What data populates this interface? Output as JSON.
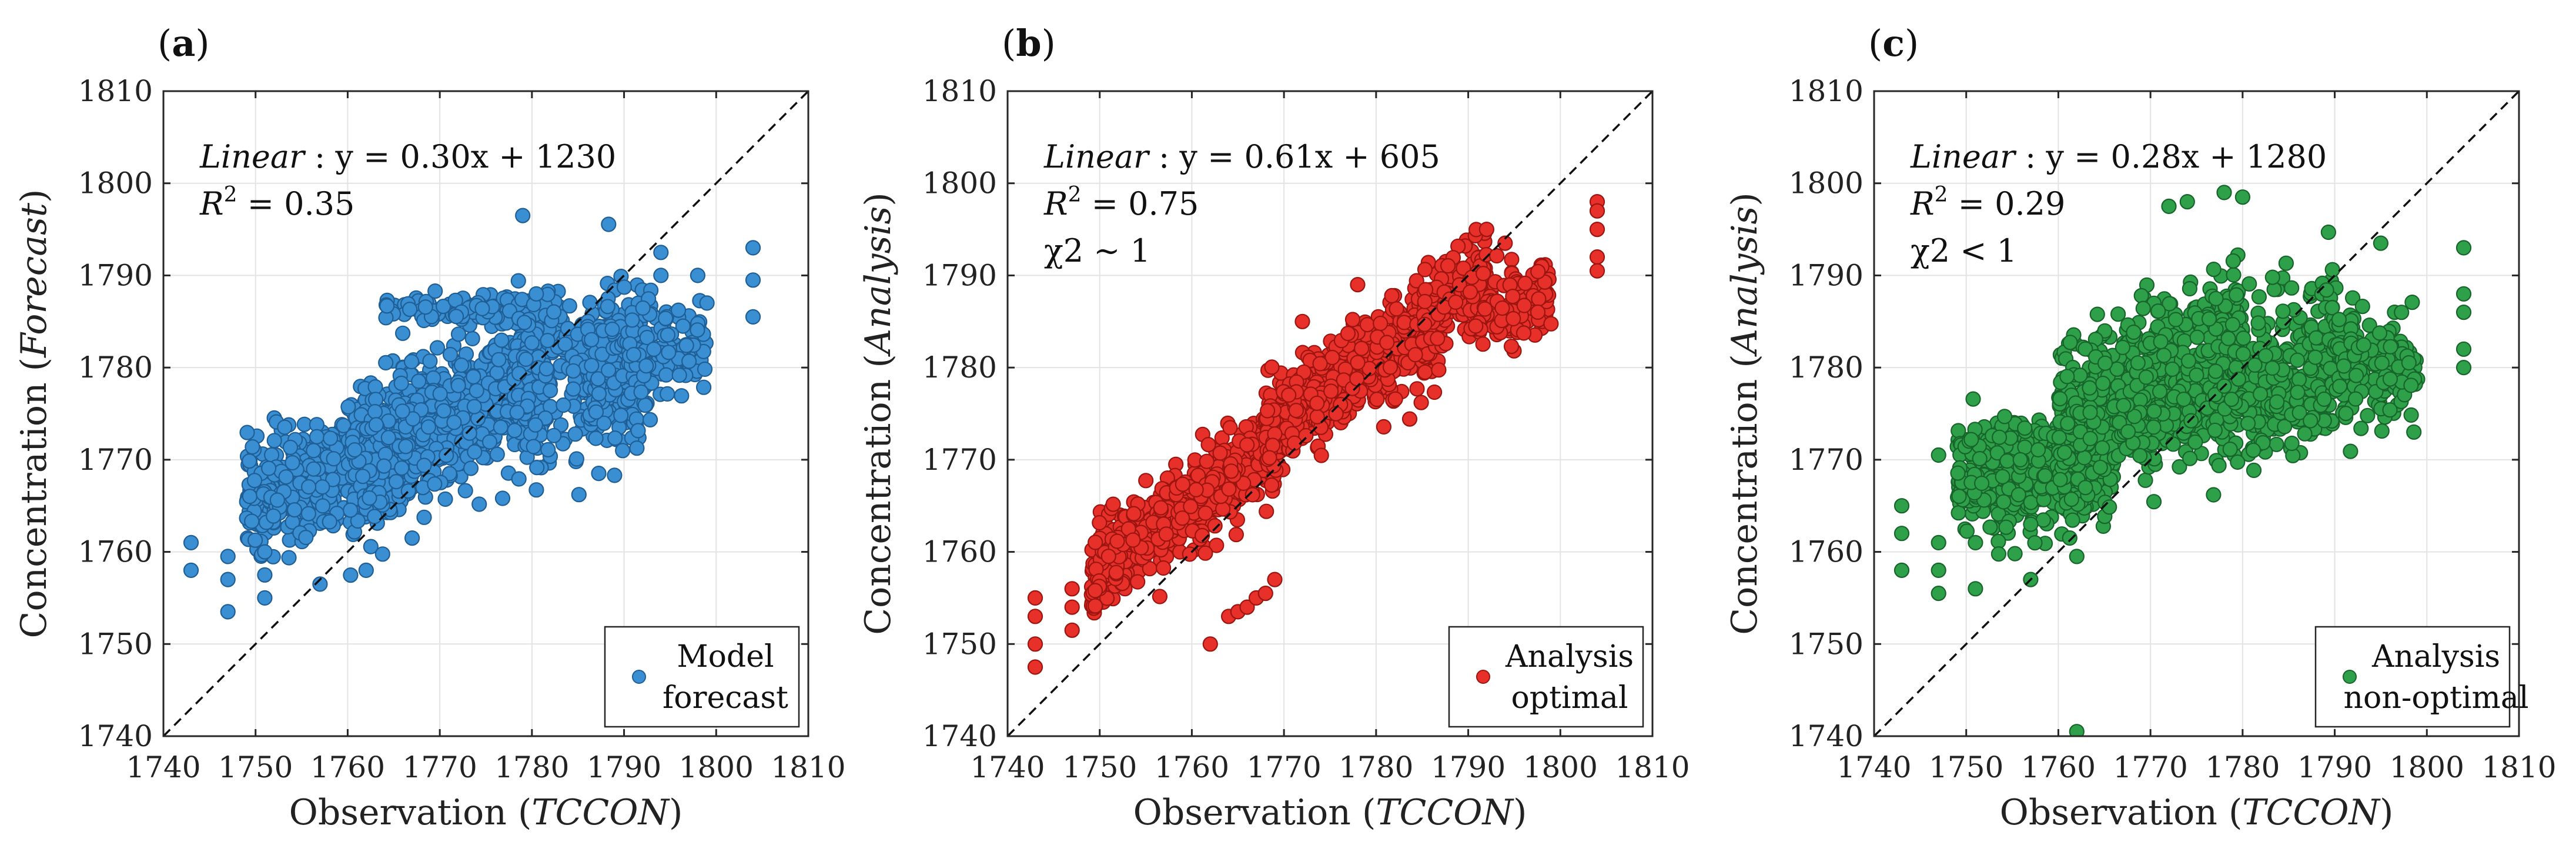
{
  "chart_data": [
    {
      "type": "scatter",
      "panel_label": "a",
      "title": "",
      "xlabel": "Observation",
      "xlabel_italic": "TCCON",
      "ylabel": "Concentration",
      "ylabel_italic": "Forecast",
      "xlim": [
        1740,
        1810
      ],
      "ylim": [
        1740,
        1810
      ],
      "xticks": [
        "1740",
        "1750",
        "1760",
        "1770",
        "1780",
        "1790",
        "1800",
        "1810"
      ],
      "yticks": [
        "1740",
        "1750",
        "1760",
        "1770",
        "1780",
        "1790",
        "1800",
        "1810"
      ],
      "grid": true,
      "reference_line": "y = x",
      "fit_label": "Linear",
      "fit_equation": ": y = 0.30x + 1230",
      "fit_slope": 0.3,
      "fit_intercept": 1230,
      "r2_label": "R",
      "r2_value": "= 0.35",
      "chi2_text": "",
      "legend": {
        "placement": "bottom-right",
        "line1": "Model",
        "line2": "forecast"
      },
      "color": "#3a8fd3",
      "edge_color": "#1f5f96",
      "seed": 11,
      "clusters": [
        {
          "xmin": 1749,
          "xmax": 1767,
          "slope": 0.3,
          "intercept": 1240.8,
          "spread": 5.5,
          "n": 520
        },
        {
          "xmin": 1760,
          "xmax": 1782,
          "slope": 0.42,
          "intercept": 1031.0,
          "spread": 7.0,
          "n": 620
        },
        {
          "xmin": 1764,
          "xmax": 1783,
          "slope": 0.05,
          "intercept": 1697.7,
          "spread": 1.4,
          "n": 120
        },
        {
          "xmin": 1778,
          "xmax": 1792,
          "slope": 0.32,
          "intercept": 1208.5,
          "spread": 7.5,
          "n": 320
        },
        {
          "xmin": 1786,
          "xmax": 1793,
          "slope": 0.0,
          "intercept": 1779.0,
          "spread": 7.0,
          "n": 140
        },
        {
          "xmin": 1790,
          "xmax": 1799,
          "slope": 0.0,
          "intercept": 1782.5,
          "spread": 4.5,
          "n": 130
        }
      ],
      "outliers": [
        [
          1743,
          1761
        ],
        [
          1743,
          1758
        ],
        [
          1747,
          1759.5
        ],
        [
          1747,
          1757
        ],
        [
          1747,
          1753.5
        ],
        [
          1751,
          1760
        ],
        [
          1751,
          1757.5
        ],
        [
          1751,
          1755
        ],
        [
          1757,
          1756.5
        ],
        [
          1762,
          1758
        ],
        [
          1779,
          1796.5
        ],
        [
          1794,
          1792.5
        ],
        [
          1794,
          1790
        ],
        [
          1804,
          1793
        ],
        [
          1804,
          1789.5
        ],
        [
          1804,
          1785.5
        ],
        [
          1798,
          1790
        ],
        [
          1799,
          1787
        ],
        [
          1767,
          1761.5
        ]
      ]
    },
    {
      "type": "scatter",
      "panel_label": "b",
      "title": "",
      "xlabel": "Observation",
      "xlabel_italic": "TCCON",
      "ylabel": "Concentration",
      "ylabel_italic": "Analysis",
      "xlim": [
        1740,
        1810
      ],
      "ylim": [
        1740,
        1810
      ],
      "xticks": [
        "1740",
        "1750",
        "1760",
        "1770",
        "1780",
        "1790",
        "1800",
        "1810"
      ],
      "yticks": [
        "1740",
        "1750",
        "1760",
        "1770",
        "1780",
        "1790",
        "1800",
        "1810"
      ],
      "grid": true,
      "reference_line": "y = x",
      "fit_label": "Linear",
      "fit_equation": ": y = 0.61x + 605",
      "fit_slope": 0.61,
      "fit_intercept": 605,
      "r2_label": "R",
      "r2_value": "= 0.75",
      "chi2_text": "χ2 ∼ 1",
      "legend": {
        "placement": "bottom-right",
        "line1": "Analysis",
        "line2": "optimal"
      },
      "color": "#e8302a",
      "edge_color": "#9c1510",
      "seed": 23,
      "clusters": [
        {
          "xmin": 1749,
          "xmax": 1770,
          "slope": 0.72,
          "intercept": 498.0,
          "spread": 4.2,
          "n": 620
        },
        {
          "xmin": 1768,
          "xmax": 1787,
          "slope": 0.62,
          "intercept": 677.0,
          "spread": 4.5,
          "n": 520
        },
        {
          "xmin": 1785,
          "xmax": 1792,
          "slope": 0.55,
          "intercept": 804.5,
          "spread": 4.0,
          "n": 160
        },
        {
          "xmin": 1790,
          "xmax": 1799,
          "slope": 0.2,
          "intercept": 1428.0,
          "spread": 3.6,
          "n": 150
        }
      ],
      "outliers": [
        [
          1743,
          1755
        ],
        [
          1743,
          1753
        ],
        [
          1743,
          1750
        ],
        [
          1743,
          1747.5
        ],
        [
          1747,
          1756
        ],
        [
          1747,
          1754
        ],
        [
          1747,
          1751.5
        ],
        [
          1762,
          1750
        ],
        [
          1764,
          1753
        ],
        [
          1765,
          1753.5
        ],
        [
          1766,
          1754
        ],
        [
          1767,
          1755
        ],
        [
          1768,
          1755.5
        ],
        [
          1769,
          1757
        ],
        [
          1804,
          1798
        ],
        [
          1804,
          1797
        ],
        [
          1804,
          1795
        ],
        [
          1804,
          1792
        ],
        [
          1804,
          1790.5
        ],
        [
          1792,
          1795
        ],
        [
          1794,
          1793.5
        ],
        [
          1778,
          1789
        ],
        [
          1772,
          1785
        ]
      ]
    },
    {
      "type": "scatter",
      "panel_label": "c",
      "title": "",
      "xlabel": "Observation",
      "xlabel_italic": "TCCON",
      "ylabel": "Concentration",
      "ylabel_italic": "Analysis",
      "xlim": [
        1740,
        1810
      ],
      "ylim": [
        1740,
        1810
      ],
      "xticks": [
        "1740",
        "1750",
        "1760",
        "1770",
        "1780",
        "1790",
        "1800",
        "1810"
      ],
      "yticks": [
        "1740",
        "1750",
        "1760",
        "1770",
        "1780",
        "1790",
        "1800",
        "1810"
      ],
      "grid": true,
      "reference_line": "y = x",
      "fit_label": "Linear",
      "fit_equation": ": y = 0.28x + 1280",
      "fit_slope": 0.28,
      "fit_intercept": 1280,
      "r2_label": "R",
      "r2_value": "= 0.29",
      "chi2_text": "χ2 < 1",
      "legend": {
        "placement": "bottom-right",
        "line1": "Analysis",
        "line2": "non-optimal"
      },
      "color": "#2fa04a",
      "edge_color": "#17652a",
      "seed": 37,
      "clusters": [
        {
          "xmin": 1749,
          "xmax": 1766,
          "slope": 0.15,
          "intercept": 1505.5,
          "spread": 5.5,
          "n": 540
        },
        {
          "xmin": 1760,
          "xmax": 1780,
          "slope": 0.45,
          "intercept": 982.0,
          "spread": 7.5,
          "n": 600
        },
        {
          "xmin": 1766,
          "xmax": 1790,
          "slope": 0.1,
          "intercept": 1597.0,
          "spread": 3.0,
          "n": 160
        },
        {
          "xmin": 1777,
          "xmax": 1792,
          "slope": 0.28,
          "intercept": 1280.0,
          "spread": 8.0,
          "n": 320
        },
        {
          "xmin": 1790,
          "xmax": 1799,
          "slope": 0.0,
          "intercept": 1780.0,
          "spread": 5.5,
          "n": 150
        }
      ],
      "outliers": [
        [
          1743,
          1765
        ],
        [
          1743,
          1762
        ],
        [
          1743,
          1758
        ],
        [
          1747,
          1770.5
        ],
        [
          1747,
          1761
        ],
        [
          1747,
          1758
        ],
        [
          1747,
          1755.5
        ],
        [
          1751,
          1761
        ],
        [
          1751,
          1756
        ],
        [
          1757,
          1757
        ],
        [
          1762,
          1740.5
        ],
        [
          1762,
          1759.5
        ],
        [
          1772,
          1797.5
        ],
        [
          1774,
          1798
        ],
        [
          1778,
          1799
        ],
        [
          1780,
          1798.5
        ],
        [
          1804,
          1793
        ],
        [
          1804,
          1788
        ],
        [
          1804,
          1786
        ],
        [
          1804,
          1782
        ],
        [
          1804,
          1780
        ],
        [
          1757,
          1763
        ],
        [
          1795,
          1793.5
        ]
      ]
    }
  ]
}
